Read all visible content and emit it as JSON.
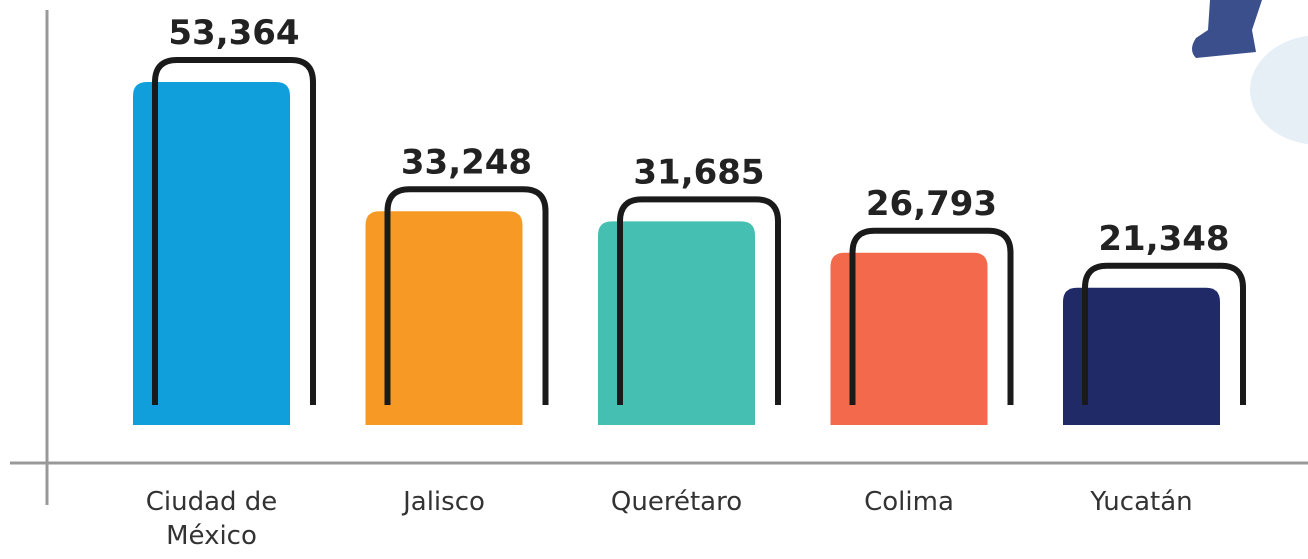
{
  "chart_data": {
    "type": "bar",
    "categories": [
      "Ciudad de México",
      "Jalisco",
      "Querétaro",
      "Colima",
      "Yucatán"
    ],
    "values": [
      53364,
      33248,
      31685,
      26793,
      21348
    ],
    "value_labels": [
      "53,364",
      "33,248",
      "31,685",
      "26,793",
      "21,348"
    ],
    "colors": [
      "#109fdb",
      "#f79a25",
      "#44bfb1",
      "#f2694b",
      "#1f2a66"
    ],
    "ylim": [
      0,
      55000
    ]
  }
}
